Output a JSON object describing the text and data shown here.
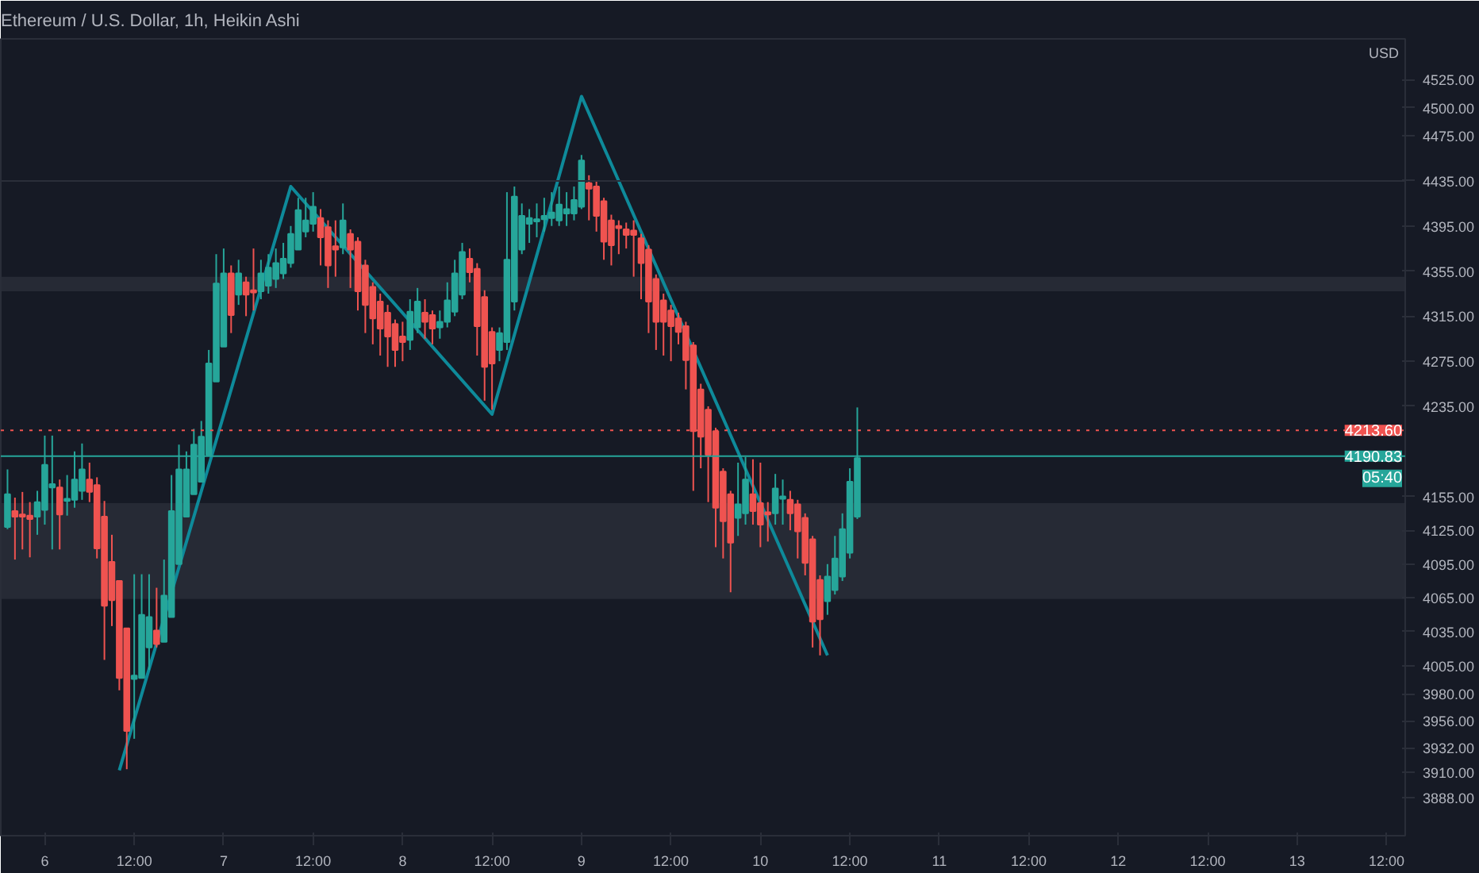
{
  "chart_data": {
    "type": "candlestick",
    "title": "Ethereum / U.S. Dollar, 1h, Heikin Ashi",
    "categories": [
      null,
      null,
      null,
      null,
      null,
      "6",
      null,
      null,
      null,
      null,
      null,
      null,
      null,
      null,
      null,
      null,
      null,
      "12:00",
      null,
      null,
      null,
      null,
      null,
      null,
      null,
      null,
      null,
      null,
      null,
      "7",
      null,
      null,
      null,
      null,
      null,
      null,
      null,
      null,
      null,
      null,
      null,
      "12:00",
      null,
      null,
      null,
      null,
      null,
      null,
      null,
      null,
      null,
      null,
      null,
      "8",
      null,
      null,
      null,
      null,
      null,
      null,
      null,
      null,
      null,
      null,
      null,
      "12:00",
      null,
      null,
      null,
      null,
      null,
      null,
      null,
      null,
      null,
      null,
      null,
      "9",
      null,
      null,
      null,
      null,
      null,
      null,
      null,
      null,
      null,
      null,
      null,
      "12:00",
      null,
      null,
      null,
      null,
      null,
      null,
      null,
      null,
      null,
      null,
      null,
      "10",
      null,
      null,
      null,
      null,
      null,
      null,
      null,
      null,
      null,
      null,
      null,
      "12:00",
      null,
      null,
      null,
      null,
      null,
      null,
      null,
      null,
      null,
      null,
      null,
      "11",
      null,
      null,
      null,
      null,
      null,
      null,
      null,
      null,
      null,
      null,
      null,
      "12:00",
      null,
      null,
      null,
      null,
      null,
      null,
      null,
      null,
      null,
      null,
      null,
      "12",
      null,
      null,
      null,
      null,
      null,
      null,
      null,
      null,
      null,
      null,
      null,
      "12:00",
      null,
      null,
      null,
      null,
      null,
      null,
      null,
      null,
      null,
      null,
      null,
      "13",
      null,
      null,
      null,
      null,
      null,
      null,
      null,
      null,
      null,
      null,
      null,
      "12:00",
      null,
      null
    ],
    "ohlc": [
      [
        4128,
        4179,
        4126,
        4157
      ],
      [
        4142,
        4154,
        4099,
        4137
      ],
      [
        4139,
        4159,
        4108,
        4137
      ],
      [
        4138,
        4150,
        4101,
        4135
      ],
      [
        4137,
        4160,
        4121,
        4150
      ],
      [
        4143,
        4209,
        4130,
        4183
      ],
      [
        4163,
        4209,
        4108,
        4166
      ],
      [
        4163,
        4170,
        4108,
        4139
      ],
      [
        4151,
        4174,
        4138,
        4153
      ],
      [
        4152,
        4195,
        4145,
        4170
      ],
      [
        4160,
        4202,
        4152,
        4179
      ],
      [
        4170,
        4185,
        4150,
        4159
      ],
      [
        4165,
        4172,
        4100,
        4109
      ],
      [
        4137,
        4151,
        4010,
        4058
      ],
      [
        4097,
        4121,
        4040,
        4063
      ],
      [
        4080,
        4080,
        3983,
        3994
      ],
      [
        4038,
        4038,
        3913,
        3947
      ],
      [
        3993,
        4086,
        3940,
        3996
      ],
      [
        3994,
        4086,
        3994,
        4050
      ],
      [
        4021,
        4086,
        4001,
        4048
      ],
      [
        4036,
        4074,
        4021,
        4024
      ],
      [
        4026,
        4099,
        4026,
        4067
      ],
      [
        4048,
        4174,
        4048,
        4142
      ],
      [
        4095,
        4201,
        4095,
        4179
      ],
      [
        4137,
        4195,
        4137,
        4179
      ],
      [
        4157,
        4215,
        4157,
        4201
      ],
      [
        4168,
        4222,
        4168,
        4208
      ],
      [
        4192,
        4285,
        4192,
        4273
      ],
      [
        4257,
        4370,
        4257,
        4344
      ],
      [
        4288,
        4375,
        4288,
        4353
      ],
      [
        4353,
        4360,
        4300,
        4316
      ],
      [
        4334,
        4365,
        4325,
        4353
      ],
      [
        4345,
        4350,
        4315,
        4334
      ],
      [
        4338,
        4375,
        4320,
        4336
      ],
      [
        4337,
        4365,
        4330,
        4353
      ],
      [
        4342,
        4370,
        4335,
        4358
      ],
      [
        4348,
        4375,
        4340,
        4362
      ],
      [
        4353,
        4380,
        4348,
        4366
      ],
      [
        4362,
        4395,
        4358,
        4388
      ],
      [
        4374,
        4420,
        4374,
        4409
      ],
      [
        4390,
        4420,
        4385,
        4400
      ],
      [
        4397,
        4425,
        4390,
        4412
      ],
      [
        4402,
        4410,
        4360,
        4385
      ],
      [
        4394,
        4400,
        4340,
        4360
      ],
      [
        4377,
        4400,
        4350,
        4374
      ],
      [
        4376,
        4415,
        4370,
        4400
      ],
      [
        4388,
        4392,
        4340,
        4374
      ],
      [
        4381,
        4385,
        4320,
        4337
      ],
      [
        4360,
        4365,
        4300,
        4325
      ],
      [
        4341,
        4345,
        4290,
        4313
      ],
      [
        4328,
        4335,
        4280,
        4304
      ],
      [
        4318,
        4325,
        4270,
        4297
      ],
      [
        4308,
        4312,
        4270,
        4285
      ],
      [
        4297,
        4310,
        4275,
        4292
      ],
      [
        4294,
        4330,
        4285,
        4319
      ],
      [
        4305,
        4340,
        4300,
        4328
      ],
      [
        4318,
        4330,
        4295,
        4310
      ],
      [
        4316,
        4320,
        4290,
        4304
      ],
      [
        4305,
        4320,
        4295,
        4310
      ],
      [
        4310,
        4345,
        4305,
        4329
      ],
      [
        4319,
        4365,
        4315,
        4353
      ],
      [
        4334,
        4380,
        4330,
        4372
      ],
      [
        4366,
        4375,
        4345,
        4354
      ],
      [
        4357,
        4362,
        4280,
        4306
      ],
      [
        4332,
        4338,
        4240,
        4270
      ],
      [
        4301,
        4305,
        4232,
        4273
      ],
      [
        4285,
        4305,
        4275,
        4300
      ],
      [
        4292,
        4425,
        4285,
        4365
      ],
      [
        4328,
        4430,
        4320,
        4421
      ],
      [
        4374,
        4415,
        4370,
        4404
      ],
      [
        4397,
        4410,
        4380,
        4402
      ],
      [
        4399,
        4415,
        4385,
        4401
      ],
      [
        4401,
        4420,
        4390,
        4404
      ],
      [
        4402,
        4425,
        4395,
        4407
      ],
      [
        4400,
        4430,
        4395,
        4414
      ],
      [
        4406,
        4425,
        4395,
        4410
      ],
      [
        4406,
        4430,
        4400,
        4418
      ],
      [
        4412,
        4458,
        4410,
        4453
      ],
      [
        4433,
        4440,
        4400,
        4428
      ],
      [
        4430,
        4435,
        4390,
        4404
      ],
      [
        4417,
        4420,
        4365,
        4381
      ],
      [
        4400,
        4405,
        4360,
        4378
      ],
      [
        4395,
        4400,
        4370,
        4393
      ],
      [
        4392,
        4398,
        4375,
        4387
      ],
      [
        4391,
        4400,
        4350,
        4387
      ],
      [
        4384,
        4388,
        4330,
        4362
      ],
      [
        4374,
        4378,
        4300,
        4328
      ],
      [
        4348,
        4352,
        4285,
        4310
      ],
      [
        4329,
        4335,
        4280,
        4310
      ],
      [
        4320,
        4325,
        4275,
        4306
      ],
      [
        4313,
        4318,
        4290,
        4301
      ],
      [
        4306,
        4310,
        4250,
        4276
      ],
      [
        4289,
        4292,
        4160,
        4213
      ],
      [
        4250,
        4255,
        4180,
        4208
      ],
      [
        4232,
        4235,
        4150,
        4192
      ],
      [
        4213,
        4216,
        4110,
        4145
      ],
      [
        4177,
        4180,
        4100,
        4133
      ],
      [
        4157,
        4160,
        4070,
        4114
      ],
      [
        4136,
        4185,
        4120,
        4148
      ],
      [
        4140,
        4190,
        4130,
        4170
      ],
      [
        4157,
        4188,
        4130,
        4142
      ],
      [
        4149,
        4185,
        4110,
        4130
      ],
      [
        4141,
        4150,
        4115,
        4139
      ],
      [
        4140,
        4175,
        4130,
        4162
      ],
      [
        4153,
        4170,
        4130,
        4155
      ],
      [
        4152,
        4160,
        4125,
        4140
      ],
      [
        4148,
        4152,
        4100,
        4124
      ],
      [
        4136,
        4140,
        4085,
        4096
      ],
      [
        4117,
        4120,
        4021,
        4044
      ],
      [
        4081,
        4085,
        4014,
        4046
      ],
      [
        4062,
        4095,
        4050,
        4084
      ],
      [
        4072,
        4120,
        4068,
        4100
      ],
      [
        4084,
        4140,
        4080,
        4126
      ],
      [
        4105,
        4180,
        4100,
        4168
      ],
      [
        4137,
        4234,
        4135,
        4189
      ],
      null,
      null,
      null,
      null,
      null,
      null,
      null,
      null,
      null,
      null,
      null,
      null,
      null,
      null,
      null,
      null,
      null,
      null,
      null,
      null,
      null,
      null,
      null,
      null,
      null,
      null,
      null,
      null,
      null,
      null,
      null,
      null,
      null,
      null,
      null,
      null,
      null,
      null,
      null,
      null,
      null,
      null,
      null,
      null,
      null,
      null,
      null,
      null,
      null,
      null,
      null,
      null,
      null,
      null,
      null,
      null,
      null,
      null,
      null,
      null,
      null,
      null,
      null,
      null,
      null,
      null,
      null,
      null,
      null,
      null,
      null,
      null,
      null
    ],
    "series": [
      {
        "type": "line",
        "color": "#0e8a9a",
        "values": [
          null,
          null,
          null,
          null,
          null,
          null,
          null,
          null,
          null,
          null,
          null,
          null,
          null,
          null,
          null,
          3912,
          null,
          null,
          null,
          null,
          null,
          null,
          null,
          null,
          null,
          null,
          null,
          null,
          null,
          null,
          null,
          null,
          null,
          null,
          null,
          null,
          null,
          null,
          4430,
          null,
          null,
          null,
          null,
          null,
          null,
          null,
          null,
          null,
          null,
          null,
          null,
          null,
          null,
          null,
          null,
          null,
          null,
          null,
          null,
          null,
          null,
          null,
          null,
          null,
          null,
          4228,
          null,
          null,
          null,
          null,
          null,
          null,
          null,
          null,
          null,
          null,
          null,
          4510,
          null,
          null,
          null,
          null,
          null,
          null,
          null,
          null,
          null,
          null,
          null,
          null,
          null,
          null,
          null,
          null,
          null,
          null,
          null,
          null,
          null,
          null,
          null,
          null,
          null,
          null,
          null,
          null,
          null,
          null,
          null,
          null,
          4014,
          null,
          null,
          null,
          null,
          null,
          null,
          null,
          null,
          null,
          null,
          null,
          null,
          null,
          null,
          null,
          null,
          null,
          null,
          null,
          null,
          null,
          null,
          null,
          null,
          null,
          null,
          null,
          null,
          null,
          null,
          null,
          null,
          null,
          null,
          null,
          null,
          null,
          null,
          null,
          null,
          null,
          null,
          null,
          null,
          null,
          null,
          null,
          null,
          null,
          null,
          null,
          null,
          null,
          null,
          null,
          null,
          null,
          null,
          null,
          null,
          null,
          null,
          null,
          null,
          null,
          null,
          null,
          null,
          null,
          null,
          null,
          null,
          null,
          null,
          null,
          null,
          null
        ]
      }
    ],
    "ylim": [
      3854,
      4561
    ],
    "yticks": [
      {
        "value": 4525,
        "label": "4525.00"
      },
      {
        "value": 4500,
        "label": "4500.00"
      },
      {
        "value": 4475,
        "label": "4475.00"
      },
      {
        "value": 4435,
        "label": "4435.00"
      },
      {
        "value": 4395,
        "label": "4395.00"
      },
      {
        "value": 4355,
        "label": "4355.00"
      },
      {
        "value": 4315,
        "label": "4315.00"
      },
      {
        "value": 4275,
        "label": "4275.00"
      },
      {
        "value": 4235,
        "label": "4235.00"
      },
      {
        "value": 4155,
        "label": "4155.00"
      },
      {
        "value": 4125,
        "label": "4125.00"
      },
      {
        "value": 4095,
        "label": "4095.00"
      },
      {
        "value": 4065,
        "label": "4065.00"
      },
      {
        "value": 4035,
        "label": "4035.00"
      },
      {
        "value": 4005,
        "label": "4005.00"
      },
      {
        "value": 3980,
        "label": "3980.00"
      },
      {
        "value": 3956,
        "label": "3956.00"
      },
      {
        "value": 3932,
        "label": "3932.00"
      },
      {
        "value": 3910,
        "label": "3910.00"
      },
      {
        "value": 3888,
        "label": "3888.00"
      }
    ],
    "ref_lines": [
      {
        "axis": "y",
        "value": 4435,
        "color": "#2a2e39"
      },
      {
        "axis": "y",
        "value": 4213.6,
        "label": "4213.60",
        "color": "#ef5350",
        "line_style": "dotted"
      },
      {
        "axis": "y",
        "value": 4190.83,
        "label": "4190.83",
        "color": "#26a69a"
      }
    ],
    "bands": [
      {
        "axis": "y",
        "from": 4064,
        "to": 4149,
        "color": "#2a2e39"
      },
      {
        "axis": "y",
        "from": 4337,
        "to": 4350,
        "color": "#2a2e39"
      }
    ],
    "annotations": [
      "05:40",
      "USD"
    ],
    "grid": false
  }
}
